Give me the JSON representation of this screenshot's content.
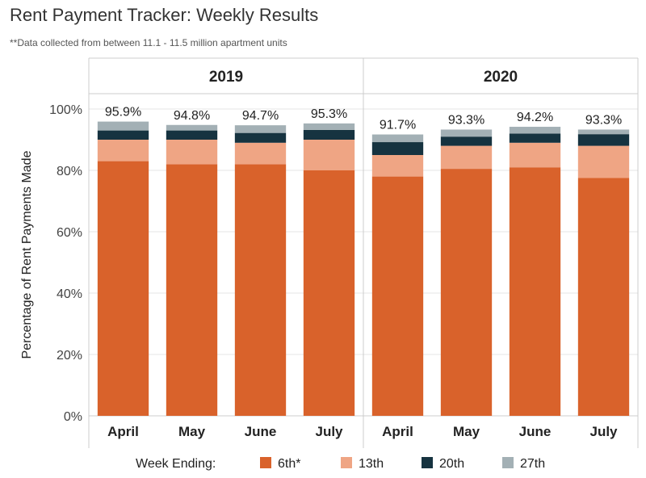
{
  "header": {
    "title": "Rent Payment Tracker: Weekly Results",
    "subtitle": "**Data collected from between 11.1 - 11.5 million apartment units"
  },
  "chart_data": {
    "type": "bar",
    "stacked": true,
    "ylabel": "Percentage of Rent Payments Made",
    "ylim": [
      0,
      105
    ],
    "yticks": [
      0,
      20,
      40,
      60,
      80,
      100
    ],
    "ytick_labels": [
      "0%",
      "20%",
      "40%",
      "60%",
      "80%",
      "100%"
    ],
    "panels": [
      {
        "label": "2019",
        "categories": [
          "April",
          "May",
          "June",
          "July"
        ],
        "totals": [
          "95.9%",
          "94.8%",
          "94.7%",
          "95.3%"
        ]
      },
      {
        "label": "2020",
        "categories": [
          "April",
          "May",
          "June",
          "July"
        ],
        "totals": [
          "91.7%",
          "93.3%",
          "94.2%",
          "93.3%"
        ]
      }
    ],
    "legend_title": "Week Ending:",
    "legend_position": "bottom",
    "series": [
      {
        "name": "6th*",
        "color": "#D9622B",
        "values": [
          [
            83.0,
            82.0,
            82.0,
            80.0
          ],
          [
            78.0,
            80.5,
            81.0,
            77.5
          ]
        ]
      },
      {
        "name": "13th",
        "color": "#EFA584",
        "values": [
          [
            7.0,
            8.0,
            7.0,
            10.0
          ],
          [
            7.0,
            7.5,
            8.0,
            10.5
          ]
        ]
      },
      {
        "name": "20th",
        "color": "#163340",
        "values": [
          [
            3.0,
            3.0,
            3.2,
            3.2
          ],
          [
            4.2,
            3.0,
            3.0,
            3.8
          ]
        ]
      },
      {
        "name": "27th",
        "color": "#A3B0B5",
        "values": [
          [
            2.9,
            1.8,
            2.5,
            2.1
          ],
          [
            2.5,
            2.3,
            2.2,
            1.5
          ]
        ]
      }
    ]
  }
}
